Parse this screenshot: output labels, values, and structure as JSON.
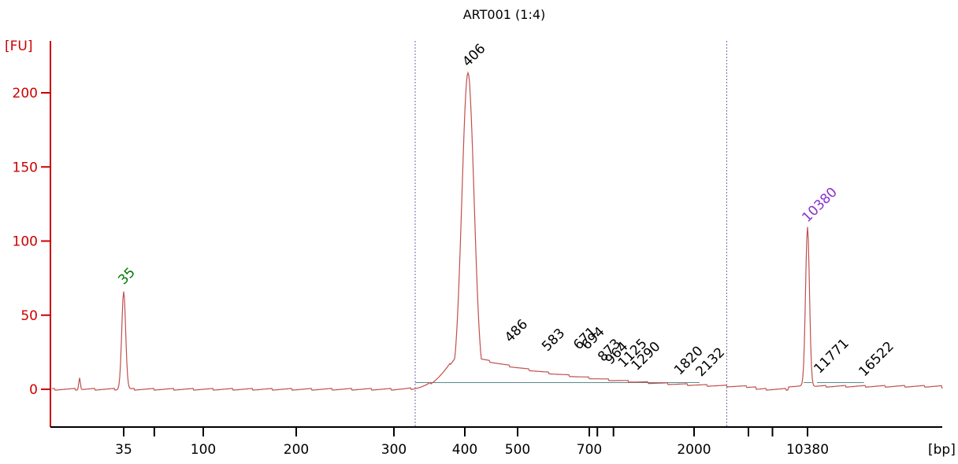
{
  "chart_data": {
    "type": "line",
    "title": "ART001 (1:4)",
    "ylabel": "[FU]",
    "xlabel": "[bp]",
    "ylim": [
      -25,
      225
    ],
    "y_ticks": [
      0,
      50,
      100,
      150,
      200
    ],
    "x_ticks": [
      "35",
      "100",
      "200",
      "300",
      "400",
      "500",
      "700",
      "2000",
      "10380"
    ],
    "colors": {
      "axis": "#cc0000",
      "trace": "#c0504d",
      "baseline": "#5a8a8a",
      "marker_lower": "#007700",
      "marker_upper": "#8833cc",
      "peak": "#000000"
    },
    "peaks": [
      {
        "label": "35",
        "bp": 35,
        "fu": 66,
        "role": "lower-marker"
      },
      {
        "label": "406",
        "bp": 406,
        "fu": 213
      },
      {
        "label": "486",
        "bp": 486,
        "fu": 27
      },
      {
        "label": "583",
        "bp": 583,
        "fu": 21
      },
      {
        "label": "671",
        "bp": 671,
        "fu": 22
      },
      {
        "label": "694",
        "bp": 694,
        "fu": 22
      },
      {
        "label": "873",
        "bp": 873,
        "fu": 14
      },
      {
        "label": "964",
        "bp": 964,
        "fu": 12
      },
      {
        "label": "1125",
        "bp": 1125,
        "fu": 10
      },
      {
        "label": "1290",
        "bp": 1290,
        "fu": 8
      },
      {
        "label": "1820",
        "bp": 1820,
        "fu": 5
      },
      {
        "label": "2132",
        "bp": 2132,
        "fu": 4
      },
      {
        "label": "10380",
        "bp": 10380,
        "fu": 108,
        "role": "upper-marker"
      },
      {
        "label": "11771",
        "bp": 11771,
        "fu": 6
      },
      {
        "label": "16522",
        "bp": 16522,
        "fu": 4
      }
    ]
  }
}
